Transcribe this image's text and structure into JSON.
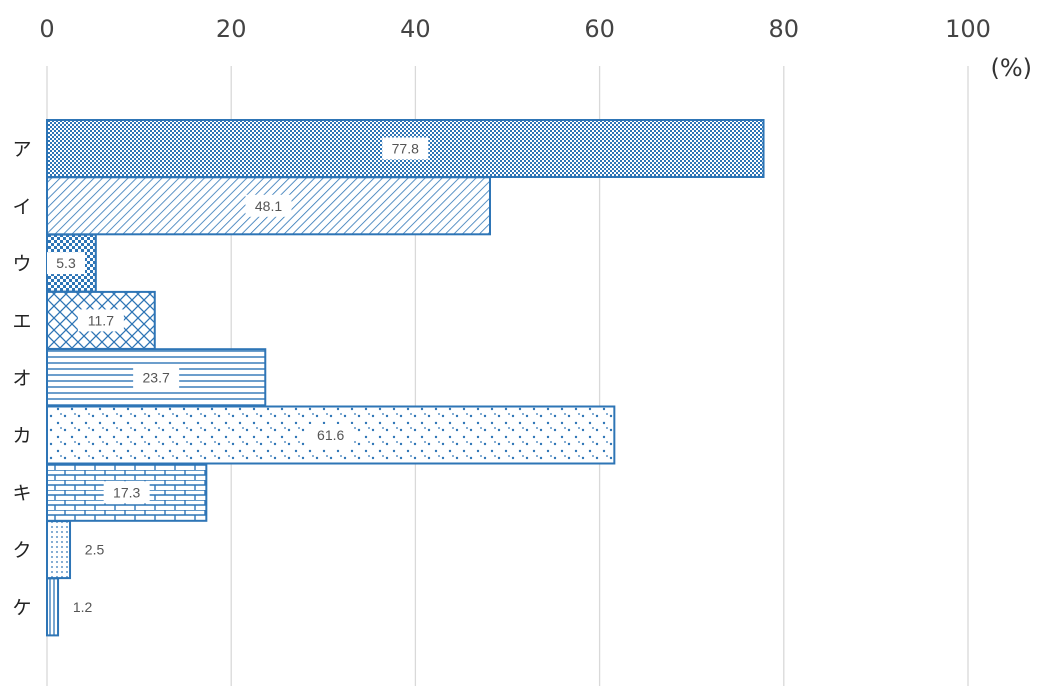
{
  "colors": {
    "bar": "#2e75b6",
    "grid": "#d9d9d9",
    "label_bg": "#ffffff"
  },
  "chart_data": {
    "type": "bar",
    "orientation": "horizontal",
    "categories": [
      "ア",
      "イ",
      "ウ",
      "エ",
      "オ",
      "カ",
      "キ",
      "ク",
      "ケ"
    ],
    "values": [
      77.8,
      48.1,
      5.3,
      11.7,
      23.7,
      61.6,
      17.3,
      2.5,
      1.2
    ],
    "data_labels": [
      "77.8",
      "48.1",
      "5.3",
      "11.7",
      "23.7",
      "61.6",
      "17.3",
      "2.5",
      "1.2"
    ],
    "patterns": [
      "dense-dots",
      "diagonal-hatch",
      "checker",
      "diagonal-cross",
      "horizontal-lines",
      "sparse-dots",
      "bricks",
      "fine-dots",
      "vertical-lines"
    ],
    "xlim": [
      0,
      100
    ],
    "xticks": [
      "0",
      "20",
      "40",
      "60",
      "80",
      "100"
    ],
    "xlabel": "(%)",
    "grid": "vertical",
    "axis_position": "top"
  }
}
